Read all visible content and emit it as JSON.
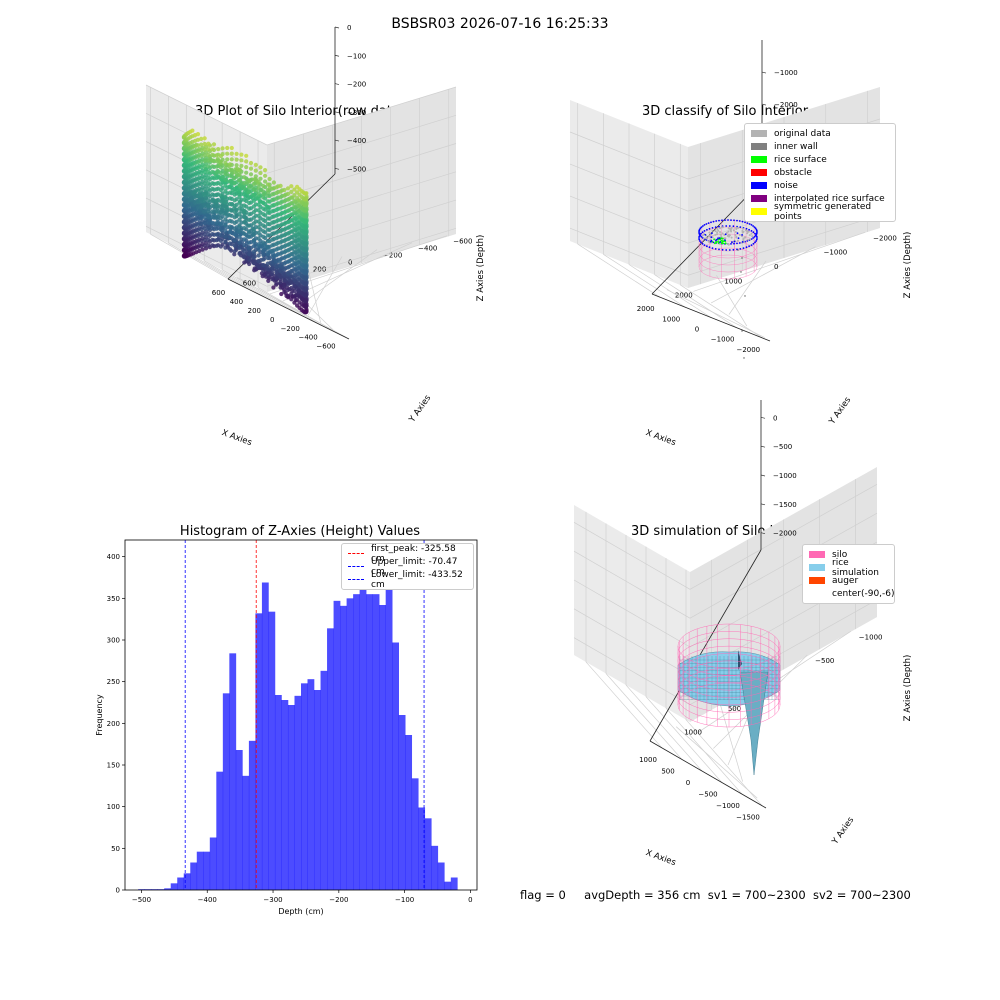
{
  "figure": {
    "suptitle": "BSBSR03 2026-07-16 16:25:33",
    "footer": {
      "flag": "flag = 0",
      "avg_depth": "avgDepth = 356 cm",
      "sv1": "sv1 = 700~2300",
      "sv2": "sv2 = 700~2300"
    }
  },
  "chart_data": [
    {
      "type": "scatter",
      "title": "3D Plot of Silo Interior(row data)",
      "xlabel": "X Axies",
      "ylabel": "Y Axies",
      "zlabel": "Z Axies (Depth)",
      "xticks": [
        -600,
        -400,
        -200,
        0,
        200,
        400,
        600
      ],
      "yticks": [
        -600,
        -400,
        -200,
        0,
        200,
        400,
        600
      ],
      "zticks": [
        0,
        -100,
        -200,
        -300,
        -400,
        -500
      ],
      "xlim": [
        -700,
        650
      ],
      "ylim": [
        -650,
        650
      ],
      "zlim": [
        -520,
        0
      ],
      "colormap": [
        "#440154",
        "#31688e",
        "#35b779",
        "#fde725"
      ],
      "silo_radius": 560,
      "grid": true
    },
    {
      "type": "scatter",
      "title": "3D classify of Silo Interior",
      "xlabel": "X Axies",
      "ylabel": "Y Axies",
      "zlabel": "Z Axies (Depth)",
      "xticks": [
        -2000,
        -1000,
        0,
        1000,
        2000
      ],
      "yticks": [
        2000,
        1000,
        0,
        -1000,
        -2000
      ],
      "zticks": [
        -1000,
        -2000,
        -3000,
        -4000
      ],
      "xlim": [
        -2300,
        2300
      ],
      "ylim": [
        -2300,
        2300
      ],
      "zlim": [
        -4400,
        0
      ],
      "legend": [
        {
          "label": "original data",
          "color": "#b3b3b3"
        },
        {
          "label": "inner wall",
          "color": "#808080"
        },
        {
          "label": "rice surface",
          "color": "#00ff00"
        },
        {
          "label": "obstacle",
          "color": "#ff0000"
        },
        {
          "label": "noise",
          "color": "#0000ff"
        },
        {
          "label": "interpolated rice surface",
          "color": "#800080"
        },
        {
          "label": "symmetric generated points",
          "color": "#ffff00"
        }
      ],
      "grid": true
    },
    {
      "type": "bar",
      "title": "Histogram of Z-Axies (Height) Values",
      "xlabel": "Depth (cm)",
      "ylabel": "Frequency",
      "xlim": [
        -525,
        10
      ],
      "ylim": [
        0,
        420
      ],
      "xticks": [
        -500,
        -400,
        -300,
        -200,
        -100,
        0
      ],
      "yticks": [
        0,
        50,
        100,
        150,
        200,
        250,
        300,
        350,
        400
      ],
      "bin_start": -505,
      "bin_width": 9.9,
      "bar_color": "#0000ff",
      "values": [
        1,
        1,
        1,
        1,
        2,
        8,
        15,
        20,
        33,
        46,
        46,
        63,
        142,
        236,
        284,
        168,
        137,
        179,
        332,
        369,
        334,
        234,
        228,
        222,
        233,
        248,
        253,
        240,
        263,
        314,
        347,
        341,
        350,
        355,
        366,
        355,
        355,
        342,
        363,
        297,
        210,
        186,
        134,
        99,
        86,
        53,
        33,
        10,
        15
      ],
      "lines": [
        {
          "label": "first_peak: -325.58 cm",
          "x": -325.58,
          "color": "#ff0000"
        },
        {
          "label": "Upper_limit: -70.47 cm",
          "x": -70.47,
          "color": "#0000ff"
        },
        {
          "label": "Lower_limit: -433.52 cm",
          "x": -433.52,
          "color": "#0000ff"
        }
      ],
      "legend_position": "top-right"
    },
    {
      "type": "surface",
      "title": "3D simulation of Silo Interior",
      "xlabel": "X Axies",
      "ylabel": "Y Axies",
      "zlabel": "Z Axies (Depth)",
      "xticks": [
        -1500,
        -1000,
        -500,
        0,
        500,
        1000
      ],
      "yticks": [
        1000,
        500,
        0,
        -500,
        -1000
      ],
      "zticks": [
        0,
        -500,
        -1000,
        -1500,
        -2000
      ],
      "xlim": [
        -1600,
        1300
      ],
      "ylim": [
        -1300,
        1300
      ],
      "zlim": [
        -2300,
        300
      ],
      "legend": [
        {
          "label": "silo",
          "color": "#ff69b4"
        },
        {
          "label": "rice simulation",
          "color": "#87ceeb"
        },
        {
          "label": "auger",
          "color": "#ff4500"
        },
        {
          "label": "center(-90,-6)",
          "color": "#ffffff"
        }
      ],
      "grid": true
    }
  ]
}
